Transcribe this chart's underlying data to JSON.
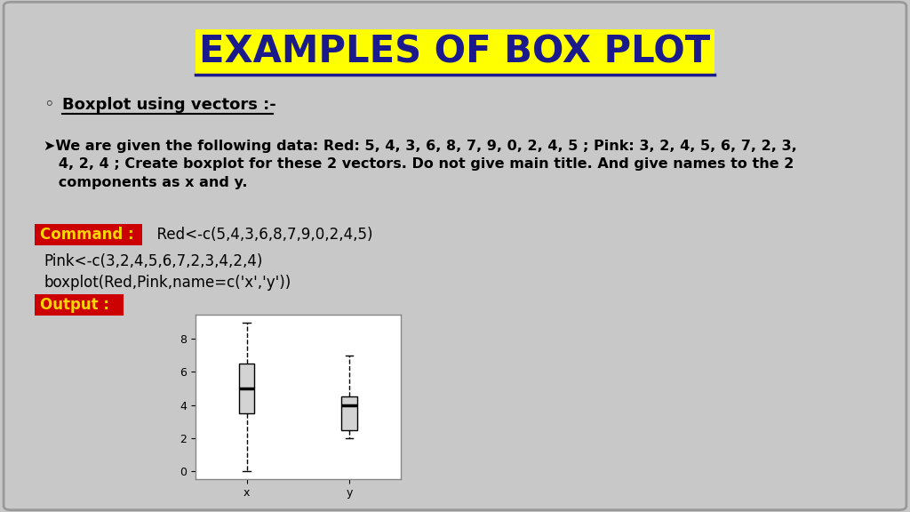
{
  "title": "EXAMPLES OF BOX PLOT",
  "slide_bg": "#C8C8C8",
  "bullet1_text": "Boxplot using vectors :-",
  "arrow_text_line1": "➤We are given the following data: Red: 5, 4, 3, 6, 8, 7, 9, 0, 2, 4, 5 ; Pink: 3, 2, 4, 5, 6, 7, 2, 3,",
  "arrow_text_line2": "   4, 2, 4 ; Create boxplot for these 2 vectors. Do not give main title. And give names to the 2",
  "arrow_text_line3": "   components as x and y.",
  "command_label": "Command :",
  "command_label_bg": "#CC0000",
  "command_label_color": "#FFD700",
  "command_text1": "  Red<-c(5,4,3,6,8,7,9,0,2,4,5)",
  "command_text2": "Pink<-c(3,2,4,5,6,7,2,3,4,2,4)",
  "command_text3": "boxplot(Red,Pink,name=c('x','y'))",
  "output_label": "Output :",
  "output_label_bg": "#CC0000",
  "output_label_color": "#FFD700",
  "red_data": [
    5,
    4,
    3,
    6,
    8,
    7,
    9,
    0,
    2,
    4,
    5
  ],
  "pink_data": [
    3,
    2,
    4,
    5,
    6,
    7,
    2,
    3,
    4,
    2,
    4
  ],
  "box_labels": [
    "x",
    "y"
  ],
  "inset_bg": "#FFFFFF",
  "title_highlight_color": "#FFFF00",
  "title_text_color": "#1a1a8c",
  "border_color": "#999999"
}
